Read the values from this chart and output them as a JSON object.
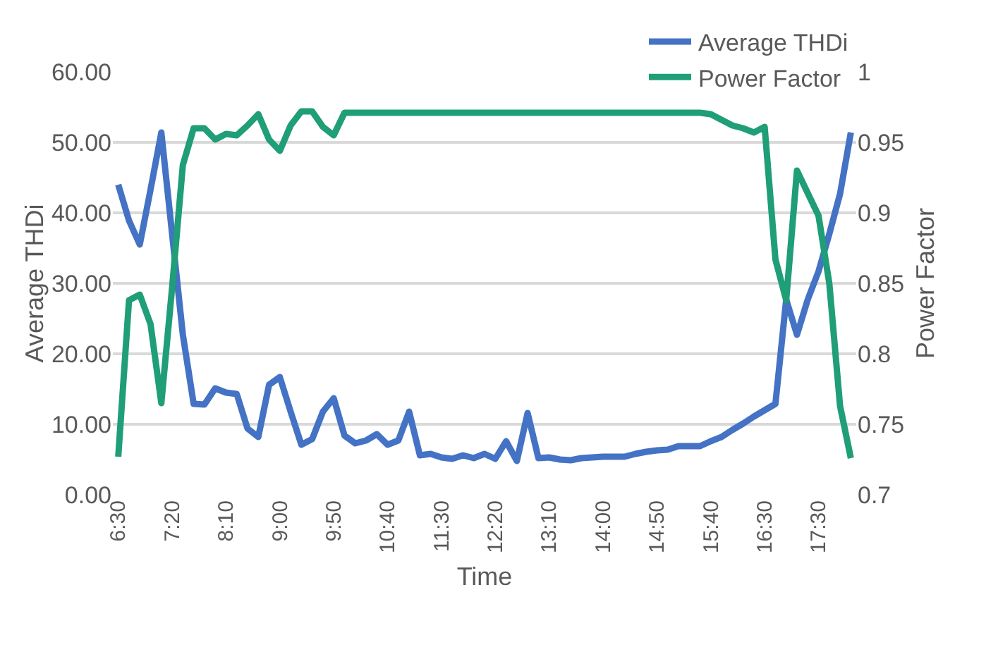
{
  "chart_data": {
    "type": "line",
    "xlabel": "Time",
    "ylabel": "Average THDi",
    "y2label": "Power Factor",
    "categories": [
      "6:30",
      null,
      null,
      null,
      null,
      "7:20",
      null,
      null,
      null,
      null,
      "8:10",
      null,
      null,
      null,
      null,
      "9:00",
      null,
      null,
      null,
      null,
      "9:50",
      null,
      null,
      null,
      null,
      "10:40",
      null,
      null,
      null,
      null,
      "11:30",
      null,
      null,
      null,
      null,
      "12:20",
      null,
      null,
      null,
      null,
      "13:10",
      null,
      null,
      null,
      null,
      "14:00",
      null,
      null,
      null,
      null,
      "14:50",
      null,
      null,
      null,
      null,
      "15:40",
      null,
      null,
      null,
      null,
      "16:30",
      null,
      null,
      null,
      null,
      "17:30",
      null,
      null,
      null
    ],
    "series": [
      {
        "name": "Average THDi",
        "color": "#4472c4",
        "values": [
          44.0,
          38.9,
          35.5,
          43.3,
          51.4,
          37.0,
          22.7,
          12.9,
          12.8,
          15.1,
          14.5,
          14.3,
          9.4,
          8.2,
          15.6,
          16.7,
          11.8,
          7.1,
          7.9,
          11.8,
          13.7,
          8.4,
          7.3,
          7.7,
          8.6,
          7.1,
          7.7,
          11.8,
          5.6,
          5.8,
          5.3,
          5.1,
          5.6,
          5.2,
          5.8,
          5.1,
          7.6,
          4.8,
          11.6,
          5.2,
          5.3,
          5.0,
          4.9,
          5.2,
          5.3,
          5.4,
          5.4,
          5.4,
          5.8,
          6.1,
          6.3,
          6.4,
          6.9,
          6.9,
          6.9,
          7.6,
          8.2,
          9.2,
          10.1,
          11.1,
          12.0,
          12.9,
          27.7,
          22.7,
          27.7,
          31.7,
          37.0,
          42.7,
          51.4
        ]
      },
      {
        "name": "Power Factor",
        "color": "#1f9e77",
        "axis": "y2",
        "values": [
          0.727,
          0.838,
          0.842,
          0.821,
          0.765,
          0.847,
          0.934,
          0.96,
          0.96,
          0.952,
          0.956,
          0.955,
          0.962,
          0.97,
          0.952,
          0.944,
          0.962,
          0.972,
          0.972,
          0.961,
          0.955,
          0.971,
          0.971,
          0.971,
          0.971,
          0.971,
          0.971,
          0.971,
          0.971,
          0.971,
          0.971,
          0.971,
          0.971,
          0.971,
          0.971,
          0.971,
          0.971,
          0.971,
          0.971,
          0.971,
          0.971,
          0.971,
          0.971,
          0.971,
          0.971,
          0.971,
          0.971,
          0.971,
          0.971,
          0.971,
          0.971,
          0.971,
          0.971,
          0.971,
          0.971,
          0.97,
          0.966,
          0.962,
          0.96,
          0.957,
          0.961,
          0.867,
          0.838,
          0.93,
          0.914,
          0.898,
          0.85,
          0.763,
          0.726
        ]
      }
    ],
    "ylim": [
      0,
      60
    ],
    "yticks": [
      {
        "value": 0,
        "label": "0.00"
      },
      {
        "value": 10,
        "label": "10.00"
      },
      {
        "value": 20,
        "label": "20.00"
      },
      {
        "value": 30,
        "label": "30.00"
      },
      {
        "value": 40,
        "label": "40.00"
      },
      {
        "value": 50,
        "label": "50.00"
      },
      {
        "value": 60,
        "label": "60.00"
      }
    ],
    "y2lim": [
      0.7,
      1
    ],
    "y2ticks": [
      0.7,
      0.75,
      0.8,
      0.85,
      0.9,
      0.95,
      1
    ],
    "grid": "y",
    "legend": "top right"
  }
}
